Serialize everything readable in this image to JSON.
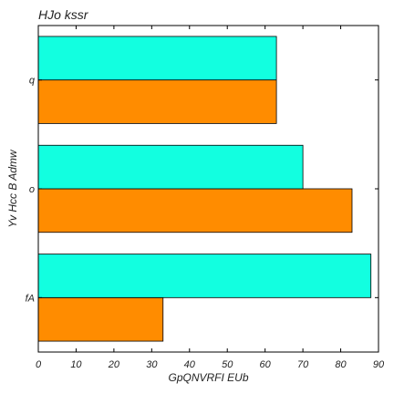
{
  "chart_data": {
    "type": "bar",
    "orientation": "horizontal",
    "title": "HJo   kssr",
    "xlabel": "GpQNVRFI EUb",
    "ylabel": "Yv Hcc B Admw",
    "categories": [
      "fA",
      "o",
      "q"
    ],
    "series": [
      {
        "values": [
          33,
          83,
          63
        ],
        "color": "#ff8c00"
      },
      {
        "values": [
          88,
          70,
          63
        ],
        "color": "#12ffe0"
      }
    ],
    "xlim": [
      0,
      90
    ],
    "xticks": [
      0,
      10,
      20,
      30,
      40,
      50,
      60,
      70,
      80,
      90
    ],
    "grid": false,
    "legend": "none"
  }
}
